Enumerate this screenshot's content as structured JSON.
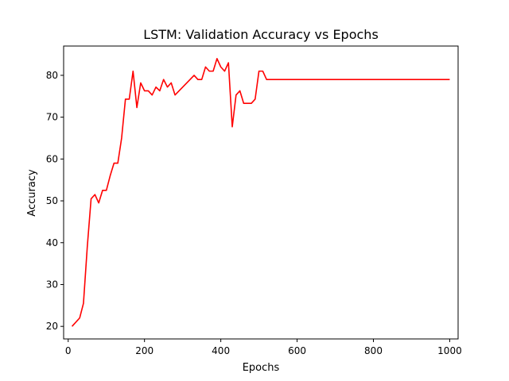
{
  "chart_data": {
    "type": "line",
    "title": "LSTM: Validation Accuracy vs Epochs",
    "xlabel": "Epochs",
    "ylabel": "Accuracy",
    "xlim": [
      -12,
      1022
    ],
    "ylim": [
      17,
      87
    ],
    "xticks": [
      0,
      200,
      400,
      600,
      800,
      1000
    ],
    "yticks": [
      20,
      30,
      40,
      50,
      60,
      70,
      80
    ],
    "grid": false,
    "legend": "none",
    "series": [
      {
        "color": "#ff0000",
        "x": [
          10,
          30,
          40,
          50,
          60,
          70,
          80,
          90,
          100,
          110,
          120,
          130,
          140,
          150,
          160,
          170,
          180,
          190,
          200,
          210,
          220,
          230,
          240,
          250,
          260,
          270,
          280,
          330,
          340,
          350,
          360,
          370,
          380,
          390,
          400,
          410,
          420,
          430,
          440,
          450,
          460,
          470,
          480,
          490,
          500,
          510,
          520,
          530,
          1000
        ],
        "y": [
          20,
          22,
          25.5,
          39,
          50.5,
          51.5,
          49.5,
          52.5,
          52.5,
          56,
          59,
          59,
          65,
          74.3,
          74.3,
          81,
          72.3,
          78.2,
          76.3,
          76.3,
          75.3,
          77.2,
          76.3,
          79,
          77.2,
          78.2,
          75.3,
          80,
          79,
          79,
          82,
          81,
          81,
          84,
          82,
          81,
          83,
          67.7,
          75.3,
          76.3,
          73.3,
          73.3,
          73.3,
          74.3,
          81,
          81,
          79,
          79,
          79
        ]
      }
    ]
  }
}
